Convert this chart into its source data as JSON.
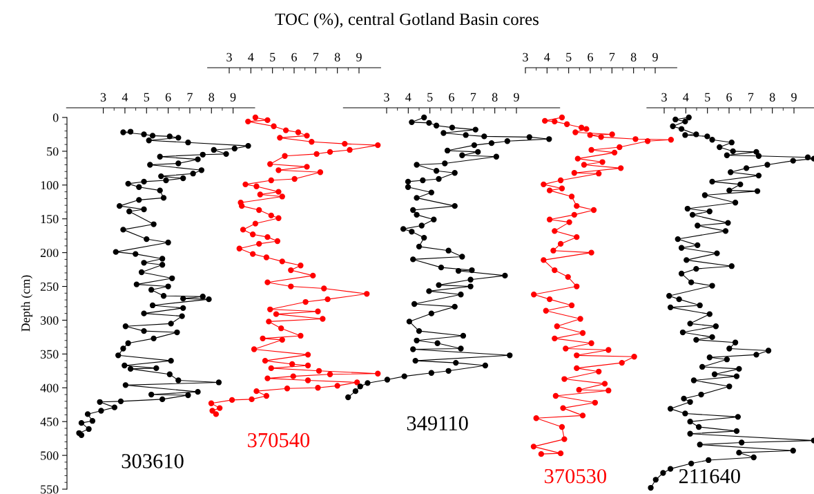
{
  "chart_data": [
    {
      "type": "line",
      "ylabel": "Depth (cm)",
      "xlim": [
        1.3,
        10
      ],
      "xticks": [
        3,
        4,
        5,
        6,
        7,
        8,
        9
      ],
      "ylim": [
        550,
        0
      ],
      "yticks": [
        0,
        50,
        100,
        150,
        200,
        250,
        300,
        350,
        400,
        450,
        500,
        550
      ],
      "marker": "circle",
      "series": [
        {
          "name": "303610",
          "color": "#000000",
          "x": [
            4.26,
            3.92,
            4.88,
            5.28,
            6.07,
            6.47,
            5.11,
            6.92,
            9.7,
            9.07,
            8.11,
            8.68,
            7.6,
            5.62,
            7.37,
            6.47,
            5.16,
            7.54,
            7.15,
            5.67,
            6.69,
            5.9,
            4.88,
            4.15,
            4.65,
            5.62,
            5.79,
            4.65,
            3.75,
            4.88,
            4.2,
            5.33,
            3.92,
            5.0,
            6.0,
            3.58,
            4.49,
            5.73,
            4.88,
            5.73,
            4.77,
            6.18,
            4.54,
            6.0,
            5.22,
            5.79,
            7.6,
            6.69,
            7.88,
            5.28,
            6.69,
            4.88,
            6.64,
            6.13,
            4.03,
            4.88,
            6.41,
            5.33,
            4.15,
            3.92,
            3.69,
            6.13,
            3.98,
            5.45,
            4.26,
            6.07,
            6.47,
            8.34,
            4.03,
            7.37,
            5.22,
            6.92,
            5.73,
            3.81,
            2.84,
            3.52,
            2.9,
            2.28,
            2.5,
            1.99,
            2.33,
            1.88,
            1.99
          ],
          "values": [
            21,
            22,
            25,
            27,
            28,
            30,
            34,
            37,
            42,
            46,
            48,
            54,
            55,
            58,
            62,
            68,
            70,
            78,
            83,
            87,
            90,
            93,
            95,
            98,
            103,
            108,
            119,
            122,
            131,
            136,
            139,
            158,
            166,
            180,
            185,
            199,
            202,
            209,
            215,
            218,
            229,
            238,
            247,
            250,
            255,
            264,
            265,
            268,
            269,
            278,
            282,
            290,
            294,
            305,
            309,
            316,
            318,
            327,
            334,
            342,
            352,
            360,
            367,
            371,
            372,
            380,
            389,
            392,
            396,
            406,
            410,
            411,
            417,
            420,
            421,
            429,
            434,
            439,
            449,
            452,
            461,
            467,
            470
          ]
        }
      ]
    },
    {
      "type": "line",
      "xlim": [
        2,
        10
      ],
      "xticks": [
        3,
        4,
        5,
        6,
        7,
        8,
        9
      ],
      "ylim": [
        550,
        0
      ],
      "tick_labels": "x",
      "marker": "circle",
      "series": [
        {
          "name": "370540",
          "color": "#ff0000",
          "x": [
            4.21,
            4.77,
            3.87,
            5.06,
            5.62,
            6.19,
            6.59,
            5.34,
            6.81,
            8.34,
            9.87,
            8.57,
            7.66,
            7.04,
            5.57,
            4.89,
            6.59,
            5.28,
            7.21,
            6.02,
            4.94,
            3.75,
            4.26,
            5.28,
            4.43,
            5.45,
            3.53,
            3.58,
            4.38,
            4.94,
            5.28,
            4.21,
            3.64,
            4.09,
            4.77,
            5.23,
            4.38,
            3.47,
            4.09,
            4.72,
            5.45,
            6.3,
            5.85,
            6.87,
            4.77,
            5.85,
            7.38,
            9.36,
            7.55,
            6.53,
            4.89,
            7.1,
            5.17,
            7.32,
            4.83,
            5.4,
            6.3,
            4.55,
            5.45,
            4.15,
            6.64,
            4.66,
            5.91,
            6.64,
            4.94,
            7.15,
            9.87,
            7.66,
            5.96,
            4.77,
            6.64,
            8.91,
            8.0,
            7.1,
            5.68,
            4.26,
            4.72,
            4.04,
            3.13,
            2.17,
            2.56,
            2.22,
            2.39
          ],
          "values": [
            0,
            4,
            6,
            13,
            19,
            22,
            27,
            30,
            36,
            39,
            41,
            48,
            51,
            54,
            57,
            69,
            73,
            78,
            81,
            91,
            93,
            99,
            102,
            110,
            114,
            117,
            126,
            131,
            137,
            145,
            149,
            157,
            166,
            173,
            177,
            183,
            187,
            194,
            202,
            207,
            213,
            219,
            226,
            234,
            244,
            250,
            253,
            261,
            269,
            273,
            284,
            287,
            291,
            298,
            302,
            312,
            323,
            327,
            329,
            343,
            351,
            360,
            365,
            367,
            371,
            375,
            379,
            380,
            383,
            386,
            389,
            392,
            397,
            400,
            401,
            405,
            412,
            417,
            418,
            423,
            430,
            434,
            439
          ]
        }
      ]
    },
    {
      "type": "line",
      "title": "TOC (%), central Gotland Basin cores",
      "xlim": [
        1,
        11
      ],
      "xticks": [
        3,
        4,
        5,
        6,
        7,
        8,
        9
      ],
      "ylim": [
        550,
        0
      ],
      "tick_labels": "x",
      "marker": "circle",
      "series": [
        {
          "name": "349110",
          "color": "#000000",
          "x": [
            4.73,
            4.16,
            4.96,
            5.3,
            6.03,
            7.11,
            5.63,
            6.66,
            7.51,
            9.6,
            10.51,
            8.58,
            7.85,
            7.05,
            5.81,
            7.22,
            6.49,
            8.07,
            5.69,
            4.39,
            5.3,
            6.15,
            5.41,
            4.67,
            3.99,
            3.99,
            5.07,
            4.39,
            6.15,
            4.22,
            4.39,
            5.18,
            4.62,
            3.77,
            4.16,
            4.73,
            4.5,
            5.86,
            6.49,
            4.22,
            5.52,
            6.94,
            6.32,
            8.47,
            6.88,
            5.41,
            6.88,
            4.96,
            6.43,
            4.28,
            6.15,
            5.07,
            4.05,
            4.5,
            6.54,
            4.39,
            5.35,
            6.43,
            4.22,
            8.69,
            4.33,
            6.2,
            7.56,
            5.86,
            5.07,
            3.82,
            3.03,
            2.12,
            1.78,
            1.56,
            1.22
          ],
          "values": [
            0,
            7,
            8,
            12,
            15,
            18,
            23,
            26,
            28,
            29,
            32,
            35,
            38,
            41,
            49,
            51,
            56,
            58,
            68,
            70,
            79,
            82,
            91,
            93,
            95,
            103,
            111,
            119,
            131,
            137,
            144,
            151,
            160,
            165,
            169,
            178,
            191,
            197,
            206,
            210,
            222,
            226,
            227,
            234,
            240,
            248,
            250,
            257,
            262,
            276,
            280,
            290,
            302,
            316,
            323,
            330,
            334,
            342,
            343,
            352,
            360,
            363,
            367,
            375,
            378,
            383,
            388,
            393,
            398,
            405,
            414
          ]
        }
      ]
    },
    {
      "type": "line",
      "xlim": [
        3,
        10
      ],
      "xticks": [
        3,
        4,
        5,
        6,
        7,
        8,
        9
      ],
      "ylim": [
        550,
        0
      ],
      "tick_labels": "x",
      "marker": "circle",
      "series": [
        {
          "name": "370530",
          "color": "#ff0000",
          "x": [
            4.69,
            3.9,
            4.35,
            4.92,
            5.59,
            5.82,
            5.31,
            7.01,
            5.99,
            6.5,
            8.09,
            9.73,
            8.65,
            7.35,
            6.05,
            7.12,
            5.42,
            6.56,
            5.71,
            7.41,
            5.26,
            6.39,
            4.63,
            3.84,
            4.69,
            4.12,
            5.14,
            5.37,
            6.16,
            5.26,
            4.12,
            5.03,
            4.35,
            5.37,
            4.63,
            4.29,
            6.05,
            3.84,
            4.35,
            4.97,
            5.37,
            3.39,
            4.12,
            5.14,
            3.95,
            5.54,
            4.46,
            5.65,
            4.35,
            6.05,
            4.86,
            6.84,
            5.37,
            8.03,
            7.46,
            5.37,
            6.39,
            4.8,
            6.67,
            5.48,
            6.84,
            4.4,
            6.22,
            4.74,
            5.65,
            3.5,
            4.69,
            4.8,
            3.38,
            4.63,
            3.73
          ],
          "values": [
            0,
            5,
            6,
            10,
            15,
            17,
            22,
            25,
            26,
            29,
            32,
            33,
            35,
            44,
            48,
            52,
            61,
            66,
            70,
            75,
            82,
            83,
            93,
            99,
            105,
            108,
            117,
            131,
            137,
            144,
            151,
            155,
            168,
            177,
            187,
            197,
            200,
            211,
            226,
            236,
            250,
            262,
            269,
            278,
            286,
            298,
            309,
            319,
            327,
            334,
            342,
            344,
            352,
            354,
            363,
            371,
            376,
            387,
            394,
            403,
            404,
            412,
            422,
            430,
            441,
            445,
            458,
            476,
            487,
            497,
            498
          ]
        }
      ]
    },
    {
      "type": "line",
      "xlim": [
        2.2,
        9.94
      ],
      "xticks": [
        3,
        4,
        5,
        6,
        7,
        8,
        9
      ],
      "ylim": [
        550,
        0
      ],
      "tick_labels": "x",
      "marker": "circle",
      "series": [
        {
          "name": "211640",
          "color": "#000000",
          "x": [
            4.14,
            3.52,
            3.97,
            3.4,
            3.8,
            4.48,
            3.97,
            4.99,
            5.22,
            6.12,
            5.56,
            6.18,
            7.26,
            5.9,
            7.37,
            9.64,
            9.92,
            8.96,
            7.77,
            6.8,
            6.07,
            7.37,
            5.22,
            6.52,
            6.01,
            7.31,
            4.88,
            6.29,
            4.08,
            5.1,
            4.31,
            5.95,
            4.54,
            5.84,
            3.63,
            4.54,
            3.8,
            5.44,
            4.03,
            6.12,
            4.48,
            3.8,
            4.25,
            5.22,
            3.23,
            3.69,
            4.65,
            3.29,
            5.1,
            4.2,
            5.39,
            3.86,
            5.22,
            4.48,
            6.29,
            6.01,
            7.82,
            7.26,
            5.1,
            5.9,
            4.76,
            6.46,
            5.33,
            6.35,
            4.37,
            6.01,
            4.71,
            3.91,
            4.2,
            3.29,
            3.97,
            6.41,
            4.2,
            4.6,
            6.35,
            4.2,
            9.92,
            6.58,
            4.65,
            8.96,
            6.46,
            7.14,
            5.05,
            4.25,
            3.29,
            2.95,
            2.61,
            2.38
          ],
          "values": [
            0,
            3,
            6,
            13,
            17,
            25,
            26,
            28,
            33,
            37,
            44,
            50,
            51,
            56,
            57,
            59,
            61,
            64,
            70,
            75,
            81,
            86,
            95,
            99,
            108,
            109,
            115,
            126,
            135,
            139,
            144,
            156,
            160,
            168,
            180,
            189,
            193,
            201,
            211,
            220,
            224,
            231,
            244,
            249,
            264,
            269,
            278,
            281,
            291,
            305,
            309,
            318,
            325,
            329,
            333,
            342,
            345,
            351,
            355,
            358,
            369,
            372,
            380,
            383,
            389,
            398,
            410,
            416,
            421,
            431,
            438,
            443,
            450,
            458,
            464,
            468,
            478,
            481,
            484,
            493,
            496,
            503,
            507,
            512,
            520,
            526,
            536,
            548
          ]
        }
      ]
    }
  ]
}
